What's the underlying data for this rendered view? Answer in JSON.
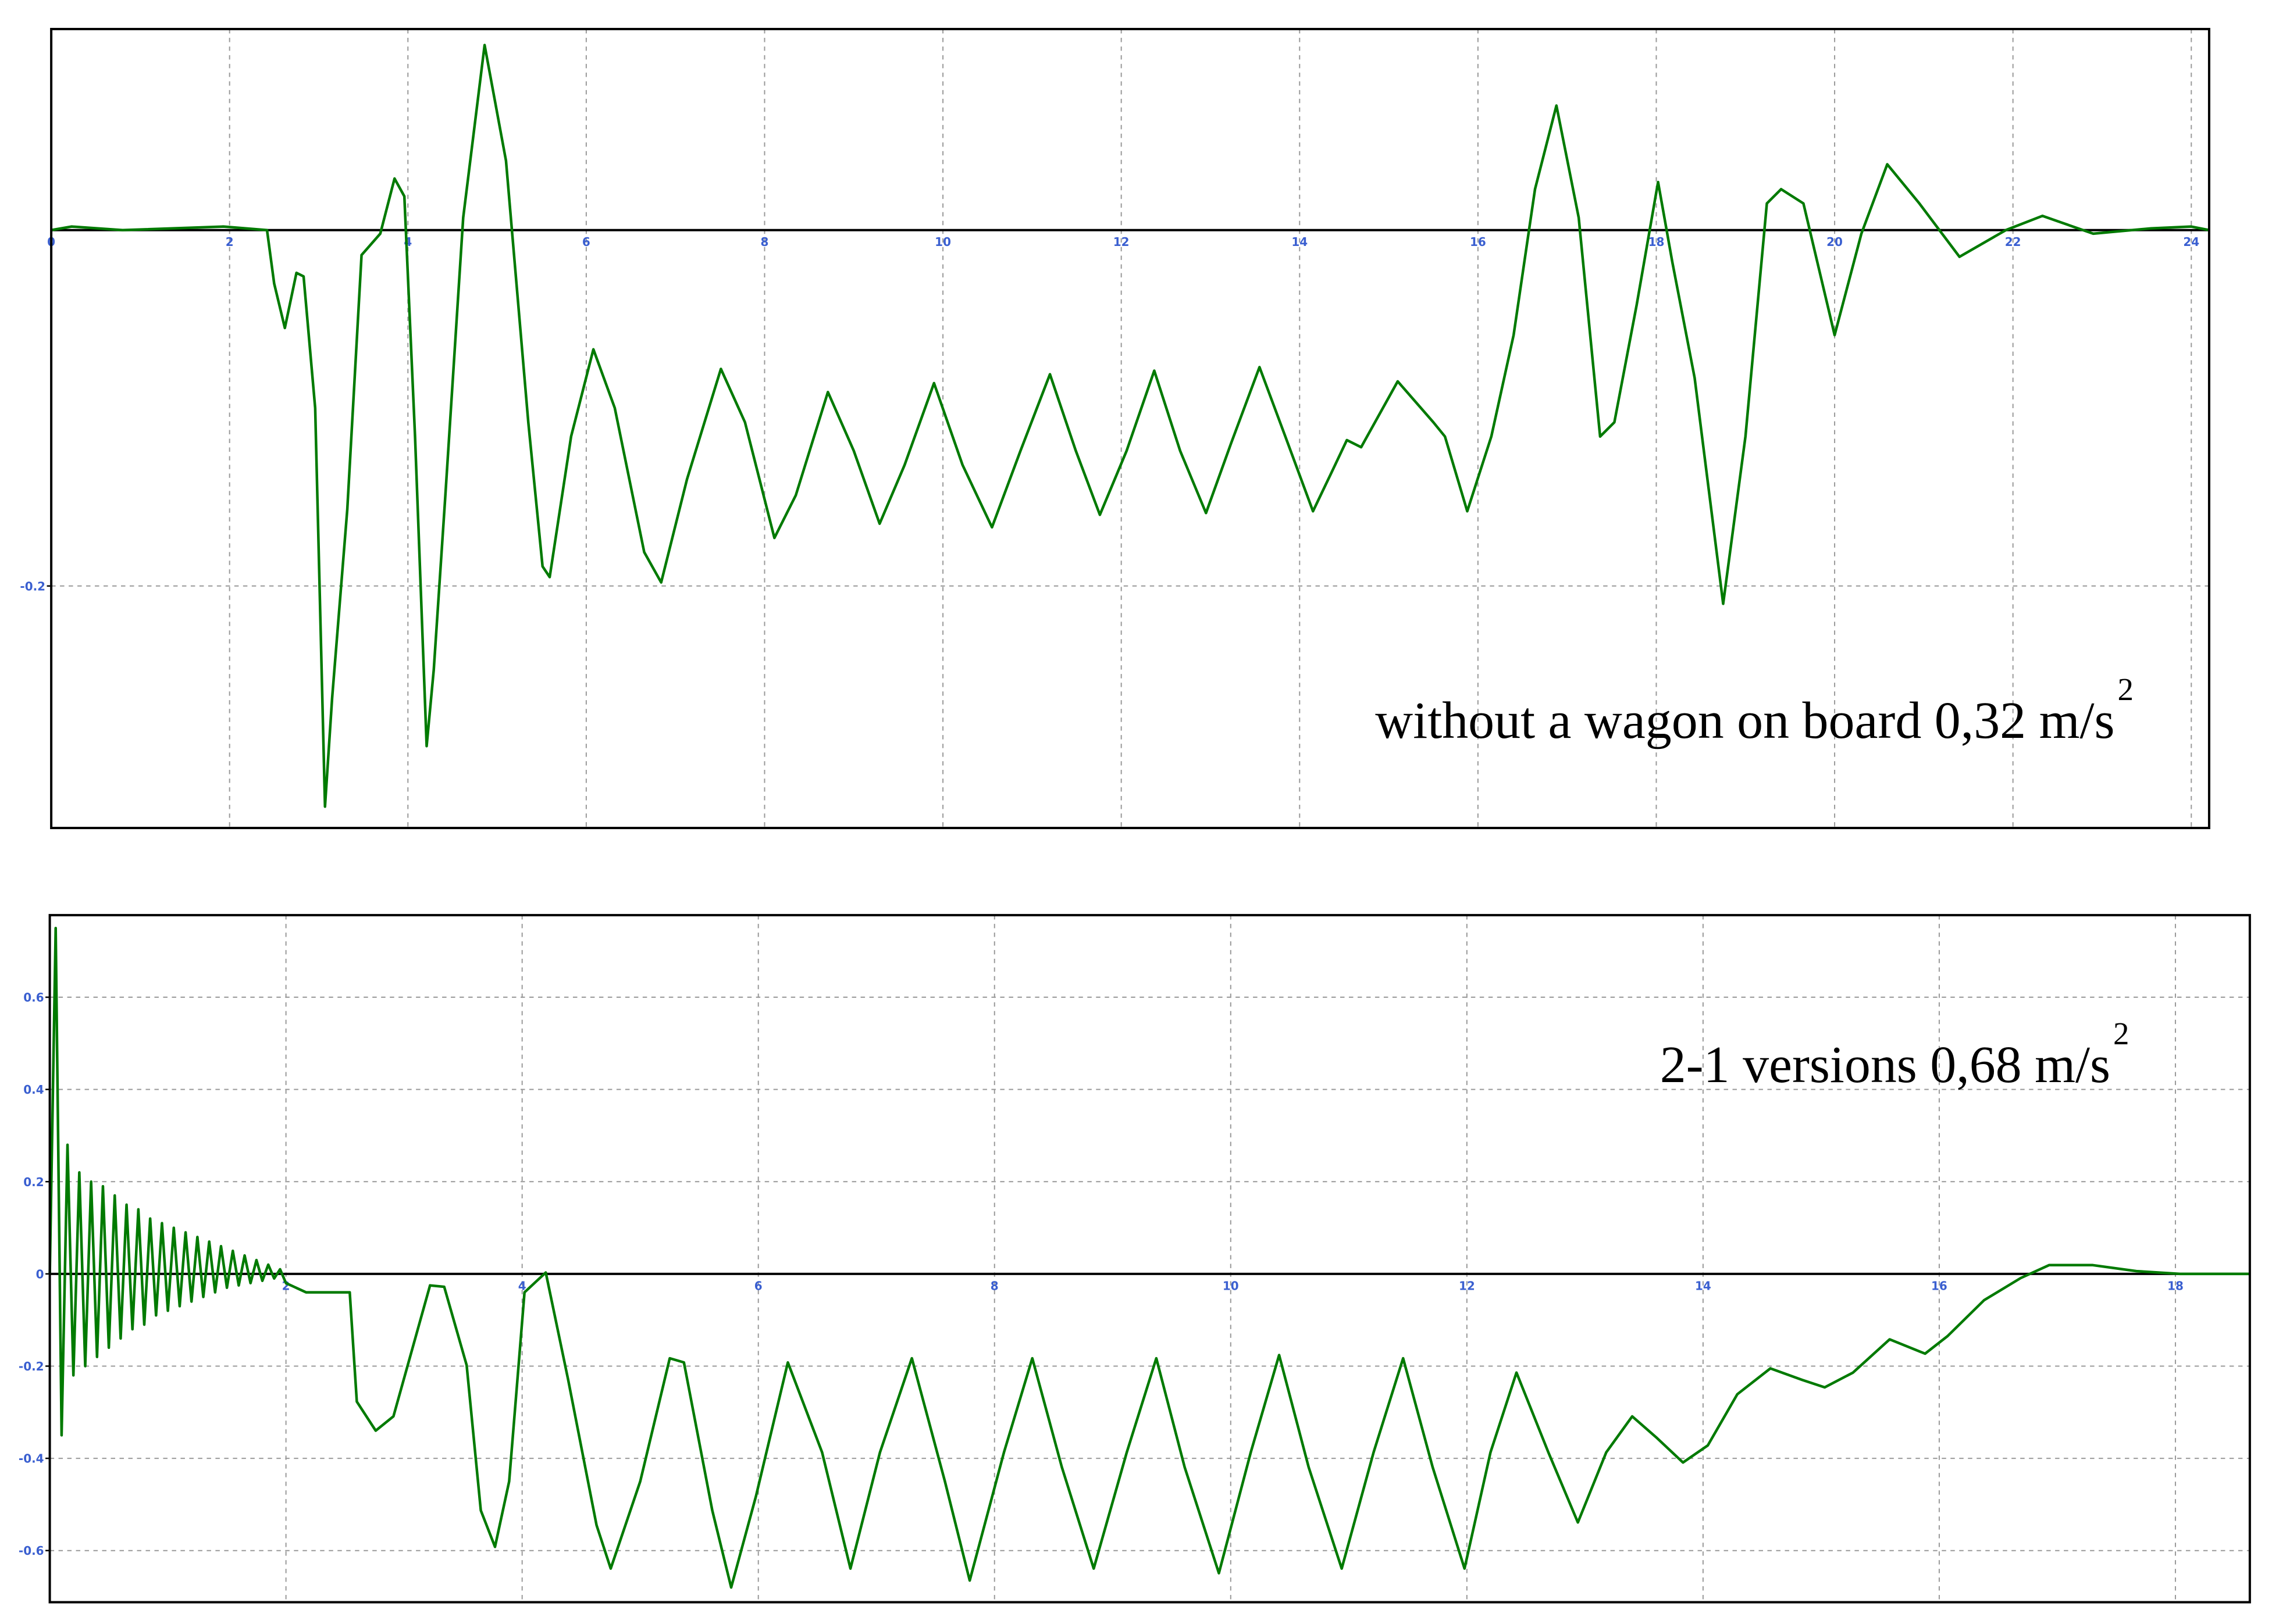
{
  "chart_data": [
    {
      "type": "line",
      "color": "#007a00",
      "grid": true,
      "xlim": [
        0,
        24.2
      ],
      "ylim": [
        -0.336,
        0.113
      ],
      "xticks": [
        0,
        2,
        4,
        6,
        8,
        10,
        12,
        14,
        16,
        18,
        20,
        22,
        24
      ],
      "yticks": [
        -0.2
      ],
      "annotation": {
        "text": "without a wagon on board 0,32 m/s",
        "superscript": "2"
      },
      "x": [
        0,
        0.23,
        0.8,
        1.93,
        2.42,
        2.5,
        2.62,
        2.75,
        2.83,
        2.96,
        3.07,
        3.15,
        3.32,
        3.48,
        3.69,
        3.85,
        3.96,
        4.08,
        4.21,
        4.29,
        4.42,
        4.62,
        4.86,
        5.1,
        5.35,
        5.51,
        5.59,
        5.83,
        6.08,
        6.32,
        6.65,
        6.84,
        7.13,
        7.51,
        7.78,
        8.11,
        8.35,
        8.71,
        9.0,
        9.29,
        9.57,
        9.9,
        10.22,
        10.55,
        10.87,
        11.2,
        11.49,
        11.76,
        12.06,
        12.37,
        12.66,
        12.95,
        13.23,
        13.55,
        13.84,
        14.15,
        14.36,
        14.53,
        14.69,
        15.1,
        15.5,
        15.63,
        15.88,
        16.15,
        16.4,
        16.64,
        16.88,
        17.13,
        17.37,
        17.53,
        17.78,
        18.02,
        18.18,
        18.43,
        18.75,
        19.0,
        19.24,
        19.4,
        19.65,
        20.0,
        20.3,
        20.59,
        20.95,
        21.4,
        21.92,
        22.33,
        22.9,
        23.55,
        24.0,
        24.2
      ],
      "values": [
        0,
        0.002,
        0,
        0.002,
        0,
        -0.03,
        -0.055,
        -0.024,
        -0.026,
        -0.1,
        -0.324,
        -0.263,
        -0.157,
        -0.014,
        -0.002,
        0.029,
        0.019,
        -0.116,
        -0.29,
        -0.247,
        -0.149,
        0.007,
        0.104,
        0.039,
        -0.108,
        -0.189,
        -0.195,
        -0.116,
        -0.067,
        -0.1,
        -0.181,
        -0.198,
        -0.14,
        -0.078,
        -0.108,
        -0.173,
        -0.149,
        -0.091,
        -0.124,
        -0.165,
        -0.132,
        -0.086,
        -0.132,
        -0.167,
        -0.124,
        -0.081,
        -0.124,
        -0.16,
        -0.124,
        -0.079,
        -0.124,
        -0.159,
        -0.12,
        -0.077,
        -0.116,
        -0.158,
        -0.136,
        -0.118,
        -0.122,
        -0.085,
        -0.108,
        -0.116,
        -0.158,
        -0.116,
        -0.059,
        0.023,
        0.07,
        0.007,
        -0.116,
        -0.108,
        -0.042,
        0.027,
        -0.018,
        -0.083,
        -0.21,
        -0.116,
        0.015,
        0.023,
        0.015,
        -0.059,
        -0.002,
        0.037,
        0.015,
        -0.015,
        0,
        0.008,
        -0.002,
        0.001,
        0.002,
        0
      ]
    },
    {
      "type": "line",
      "color": "#007a00",
      "grid": true,
      "xlim": [
        0,
        18.63
      ],
      "ylim": [
        -0.712,
        0.778
      ],
      "xticks": [
        2,
        4,
        6,
        8,
        10,
        12,
        14,
        16,
        18
      ],
      "yticks": [
        -0.6,
        -0.4,
        -0.2,
        0,
        0.2,
        0.4,
        0.6
      ],
      "annotation": {
        "text": "2-1 versions 0,68 m/s",
        "superscript": "2"
      },
      "x": [
        0,
        0.05,
        0.1,
        0.15,
        0.2,
        0.25,
        0.3,
        0.35,
        0.4,
        0.45,
        0.5,
        0.55,
        0.6,
        0.65,
        0.7,
        0.75,
        0.8,
        0.85,
        0.9,
        0.95,
        1.0,
        1.05,
        1.1,
        1.15,
        1.2,
        1.25,
        1.3,
        1.35,
        1.4,
        1.45,
        1.5,
        1.55,
        1.6,
        1.65,
        1.7,
        1.75,
        1.8,
        1.85,
        1.9,
        1.95,
        2.0,
        2.17,
        2.54,
        2.6,
        2.76,
        2.91,
        3.22,
        3.34,
        3.53,
        3.65,
        3.77,
        3.89,
        4.02,
        4.2,
        4.39,
        4.63,
        4.75,
        5.0,
        5.25,
        5.37,
        5.61,
        5.77,
        5.98,
        6.25,
        6.54,
        6.78,
        7.03,
        7.3,
        7.58,
        7.79,
        8.08,
        8.32,
        8.57,
        8.84,
        9.12,
        9.37,
        9.61,
        9.9,
        10.17,
        10.41,
        10.66,
        10.94,
        11.21,
        11.46,
        11.71,
        11.98,
        12.2,
        12.42,
        12.69,
        12.94,
        13.18,
        13.4,
        13.61,
        13.83,
        14.04,
        14.29,
        14.57,
        14.84,
        15.03,
        15.27,
        15.58,
        15.88,
        16.07,
        16.38,
        16.69,
        16.93,
        17.3,
        17.67,
        18.04,
        18.63
      ],
      "values": [
        0,
        0.75,
        -0.35,
        0.28,
        -0.22,
        0.22,
        -0.2,
        0.2,
        -0.18,
        0.19,
        -0.16,
        0.17,
        -0.14,
        0.15,
        -0.12,
        0.14,
        -0.11,
        0.12,
        -0.09,
        0.11,
        -0.08,
        0.1,
        -0.07,
        0.09,
        -0.06,
        0.08,
        -0.05,
        0.07,
        -0.04,
        0.06,
        -0.03,
        0.05,
        -0.025,
        0.04,
        -0.02,
        0.03,
        -0.015,
        0.02,
        -0.01,
        0.01,
        -0.02,
        -0.04,
        -0.04,
        -0.277,
        -0.34,
        -0.309,
        -0.025,
        -0.028,
        -0.198,
        -0.513,
        -0.592,
        -0.45,
        -0.04,
        0.003,
        -0.23,
        -0.545,
        -0.639,
        -0.45,
        -0.183,
        -0.192,
        -0.513,
        -0.68,
        -0.482,
        -0.192,
        -0.387,
        -0.639,
        -0.387,
        -0.183,
        -0.45,
        -0.665,
        -0.387,
        -0.183,
        -0.419,
        -0.639,
        -0.387,
        -0.183,
        -0.419,
        -0.649,
        -0.387,
        -0.176,
        -0.419,
        -0.639,
        -0.387,
        -0.183,
        -0.419,
        -0.639,
        -0.387,
        -0.214,
        -0.387,
        -0.539,
        -0.387,
        -0.309,
        -0.356,
        -0.409,
        -0.372,
        -0.261,
        -0.205,
        -0.23,
        -0.246,
        -0.214,
        -0.142,
        -0.173,
        -0.135,
        -0.057,
        -0.009,
        0.019,
        0.019,
        0.006,
        0,
        0
      ]
    }
  ]
}
